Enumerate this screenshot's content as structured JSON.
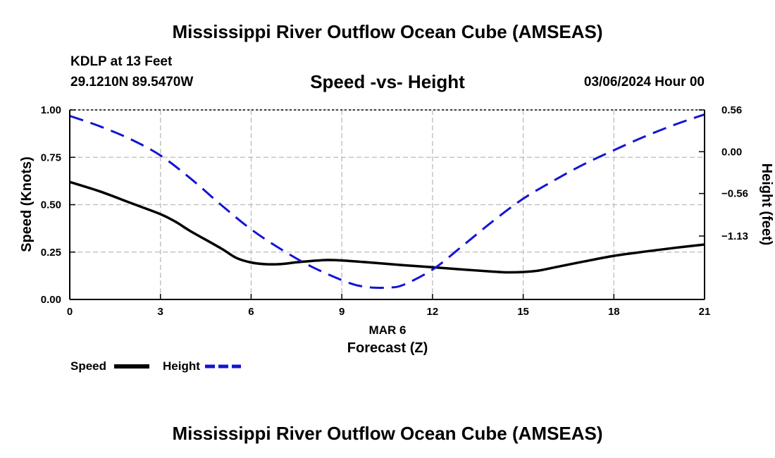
{
  "page": {
    "title_top": "Mississippi River Outflow Ocean Cube (AMSEAS)",
    "title_bottom": "Mississippi River Outflow Ocean Cube (AMSEAS)",
    "station": "KDLP at 13 Feet",
    "coords": "29.1210N  89.5470W",
    "datetime": "03/06/2024 Hour 00"
  },
  "legend": {
    "speed_label": "Speed",
    "height_label": "Height"
  },
  "colors": {
    "speed": "#000000",
    "height": "#1414d2",
    "grid": "#bbbbbb"
  },
  "chart_data": {
    "type": "line",
    "title": "Speed -vs- Height",
    "xlabel": "Forecast (Z)",
    "xsublabel": "MAR 6",
    "ylabel_left": "Speed (Knots)",
    "ylabel_right": "Height (feet)",
    "xlim": [
      0,
      21
    ],
    "ylim_left": [
      0,
      1.0
    ],
    "ylim_right": [
      -1.98,
      0.56
    ],
    "x_ticks": [
      0,
      3,
      6,
      9,
      12,
      15,
      18,
      21
    ],
    "x_tick_labels": [
      "0",
      "3",
      "6",
      "9",
      "12",
      "15",
      "18",
      "21"
    ],
    "y_left_ticks": [
      0,
      0.25,
      0.5,
      0.75,
      1.0
    ],
    "y_left_tick_labels": [
      "0.00",
      "0.25",
      "0.50",
      "0.75",
      "1.00"
    ],
    "y_right_ticks": [
      0.56,
      0.0,
      -0.56,
      -1.13
    ],
    "y_right_tick_labels": [
      "0.56",
      "0.00",
      "−0.56",
      "−1.13"
    ],
    "grid": true,
    "series": [
      {
        "name": "Speed",
        "axis": "left",
        "style": "solid",
        "x": [
          0,
          1,
          2,
          3,
          3.5,
          4,
          5,
          5.5,
          6,
          6.5,
          7,
          7.5,
          8,
          8.5,
          9,
          10,
          11,
          12,
          13,
          14,
          14.5,
          15,
          15.5,
          16,
          17,
          18,
          19,
          20,
          21
        ],
        "values": [
          0.62,
          0.57,
          0.51,
          0.45,
          0.41,
          0.36,
          0.27,
          0.22,
          0.195,
          0.186,
          0.187,
          0.196,
          0.203,
          0.208,
          0.206,
          0.194,
          0.181,
          0.17,
          0.158,
          0.147,
          0.143,
          0.145,
          0.152,
          0.168,
          0.2,
          0.23,
          0.252,
          0.272,
          0.29
        ]
      },
      {
        "name": "Height",
        "axis": "right",
        "style": "dashed",
        "x": [
          0,
          1,
          2,
          3,
          4,
          5,
          6,
          7,
          8,
          9,
          9.5,
          10,
          10.5,
          11,
          12,
          13,
          14,
          15,
          16,
          17,
          18,
          19,
          20,
          21
        ],
        "values": [
          0.48,
          0.34,
          0.17,
          -0.05,
          -0.36,
          -0.71,
          -1.04,
          -1.31,
          -1.54,
          -1.72,
          -1.79,
          -1.82,
          -1.82,
          -1.79,
          -1.58,
          -1.26,
          -0.93,
          -0.63,
          -0.39,
          -0.17,
          0.02,
          0.2,
          0.36,
          0.5
        ]
      }
    ]
  }
}
